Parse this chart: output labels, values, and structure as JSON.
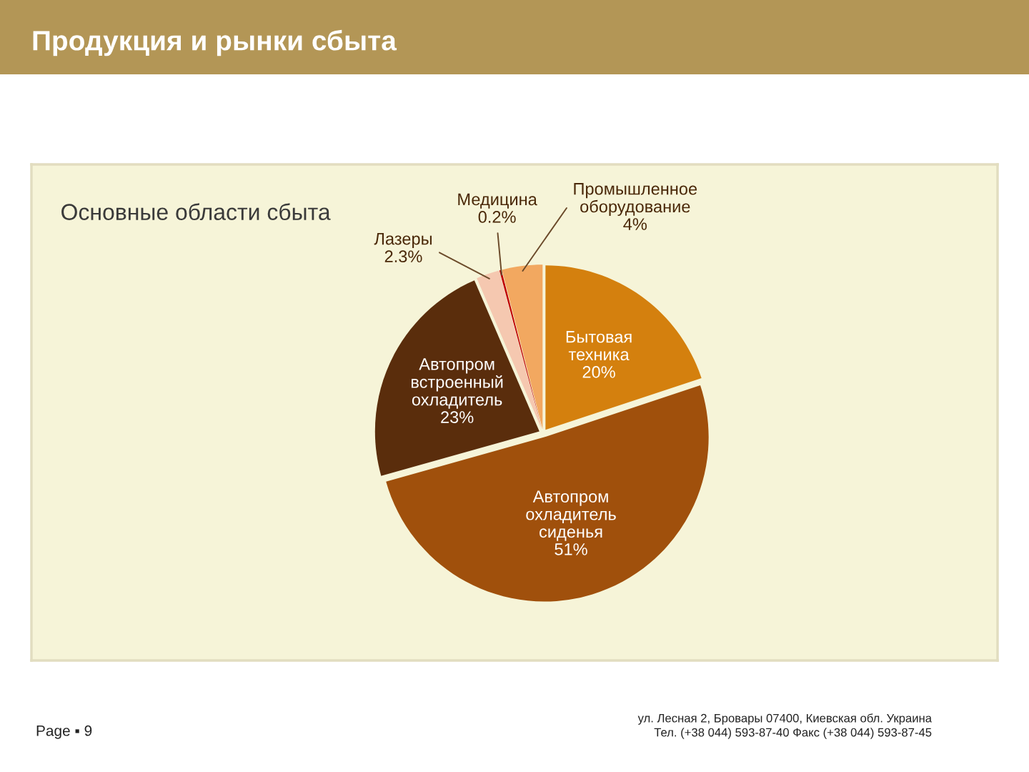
{
  "chart_data": {
    "type": "pie",
    "title": "Продукция и рынки сбыта",
    "subtitle": "Основные области сбыта",
    "categories": [
      "Бытовая техника",
      "Автопром охладитель сиденья",
      "Автопром встроенный охладитель",
      "Лазеры",
      "Медицина",
      "Промышленное оборудование"
    ],
    "values": [
      20,
      51,
      23,
      2.3,
      0.2,
      4
    ],
    "value_labels": [
      "20%",
      "51%",
      "23%",
      "2.3%",
      "0.2%",
      "4%"
    ],
    "colors": [
      "#d4800e",
      "#a0500c",
      "#5a2d0c",
      "#f5c8b0",
      "#c00000",
      "#f2a860"
    ],
    "annotations": [
      "Page ▪ 9",
      "ул. Лесная 2, Бровары 07400, Киевская обл. Украина",
      "Тел. (+38 044) 593-87-40 Факс (+38 044) 593-87-45"
    ]
  }
}
